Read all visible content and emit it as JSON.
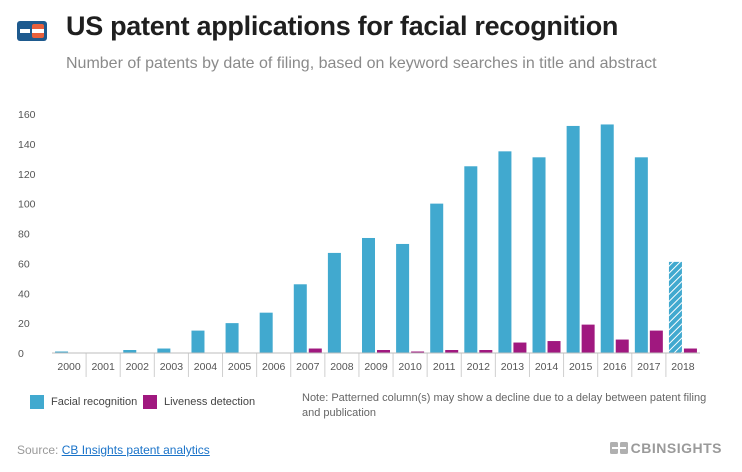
{
  "header": {
    "title": "US patent applications for facial recognition",
    "subtitle": "Number of patents by date of filing, based on keyword searches in title and abstract"
  },
  "colors": {
    "facial": "#41a9cf",
    "liveness": "#a0187f",
    "logo_blue": "#1e5a8e",
    "logo_orange": "#e8603c"
  },
  "legend": {
    "facial_label": "Facial recognition",
    "liveness_label": "Liveness detection"
  },
  "note": "Note: Patterned column(s) may show a decline due to a delay between patent filing and publication",
  "source": {
    "prefix": "Source: ",
    "link_text": "CB Insights patent analytics"
  },
  "brand": {
    "text": "CBINSIGHTS"
  },
  "chart_data": {
    "type": "bar",
    "title": "US patent applications for facial recognition",
    "subtitle": "Number of patents by date of filing, based on keyword searches in title and abstract",
    "categories": [
      "2000",
      "2001",
      "2002",
      "2003",
      "2004",
      "2005",
      "2006",
      "2007",
      "2008",
      "2009",
      "2010",
      "2011",
      "2012",
      "2013",
      "2014",
      "2015",
      "2016",
      "2017",
      "2018"
    ],
    "series": [
      {
        "name": "Facial recognition",
        "color": "#41a9cf",
        "values": [
          1,
          0,
          2,
          3,
          15,
          20,
          27,
          46,
          67,
          77,
          73,
          100,
          125,
          135,
          131,
          152,
          153,
          131,
          61
        ],
        "patterned": [
          "2018"
        ]
      },
      {
        "name": "Liveness detection",
        "color": "#a0187f",
        "values": [
          0,
          0,
          0,
          0,
          0,
          0,
          0,
          3,
          0,
          2,
          1,
          2,
          2,
          7,
          8,
          19,
          9,
          15,
          3
        ],
        "patterned": []
      }
    ],
    "ylim": [
      0,
      160
    ],
    "yticks": [
      0,
      20,
      40,
      60,
      80,
      100,
      120,
      140,
      160
    ],
    "xlabel": "",
    "ylabel": "",
    "grid": false,
    "legend_position": "bottom-left"
  }
}
